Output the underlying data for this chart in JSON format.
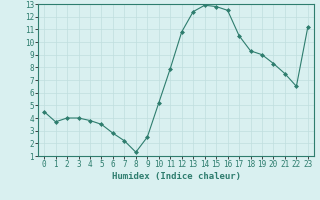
{
  "x": [
    0,
    1,
    2,
    3,
    4,
    5,
    6,
    7,
    8,
    9,
    10,
    11,
    12,
    13,
    14,
    15,
    16,
    17,
    18,
    19,
    20,
    21,
    22,
    23
  ],
  "y": [
    4.5,
    3.7,
    4.0,
    4.0,
    3.8,
    3.5,
    2.8,
    2.2,
    1.3,
    2.5,
    5.2,
    7.9,
    10.8,
    12.4,
    12.9,
    12.8,
    12.5,
    10.5,
    9.3,
    9.0,
    8.3,
    7.5,
    6.5,
    11.2
  ],
  "line_color": "#2e7d6e",
  "marker": "D",
  "marker_size": 2.0,
  "bg_color": "#d9f0f0",
  "grid_color": "#c0dede",
  "xlabel": "Humidex (Indice chaleur)",
  "xlim": [
    -0.5,
    23.5
  ],
  "ylim": [
    1,
    13
  ],
  "yticks": [
    1,
    2,
    3,
    4,
    5,
    6,
    7,
    8,
    9,
    10,
    11,
    12,
    13
  ],
  "xticks": [
    0,
    1,
    2,
    3,
    4,
    5,
    6,
    7,
    8,
    9,
    10,
    11,
    12,
    13,
    14,
    15,
    16,
    17,
    18,
    19,
    20,
    21,
    22,
    23
  ],
  "tick_fontsize": 5.5,
  "label_fontsize": 6.5
}
